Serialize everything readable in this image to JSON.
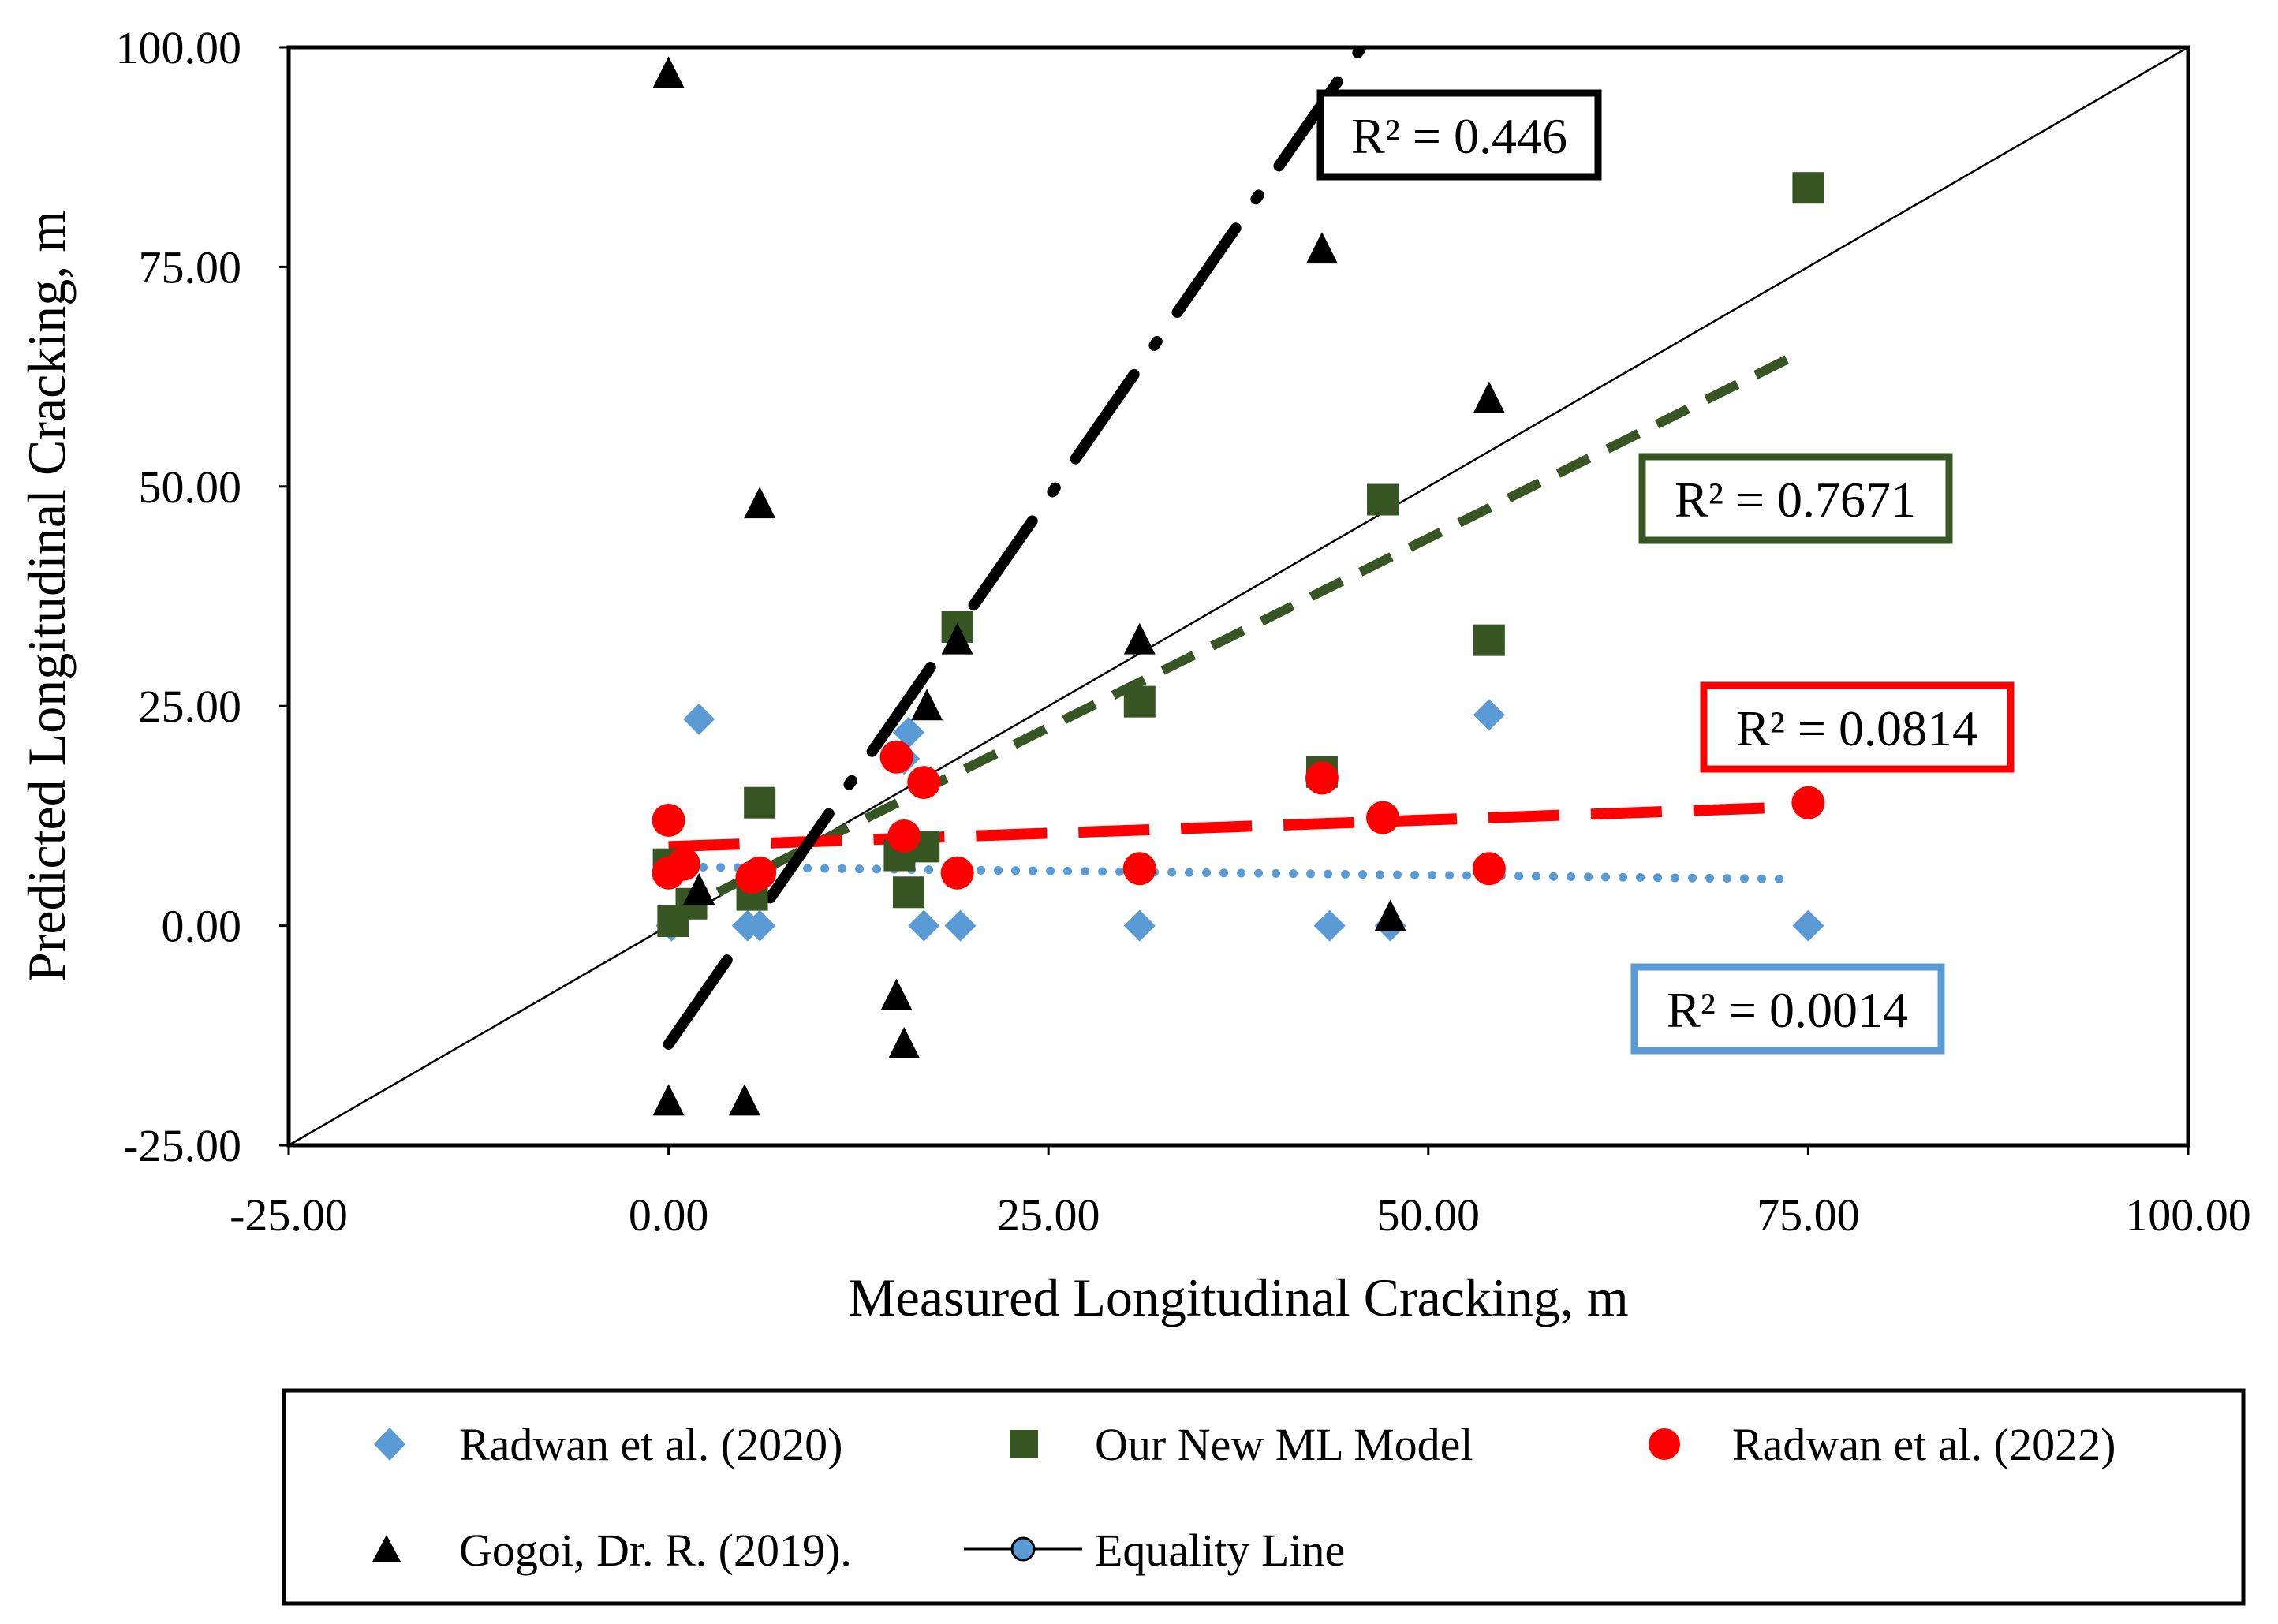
{
  "chart_data": {
    "type": "scatter",
    "title": "",
    "xlabel": "Measured Longitudinal Cracking, m",
    "ylabel": "Predicted Longitudinal Cracking, m",
    "xlim": [
      -25,
      100
    ],
    "ylim": [
      -25,
      100
    ],
    "xticks": [
      "-25.00",
      "0.00",
      "25.00",
      "50.00",
      "75.00",
      "100.00"
    ],
    "yticks": [
      "-25.00",
      "0.00",
      "25.00",
      "50.00",
      "75.00",
      "100.00"
    ],
    "grid": false,
    "legend_position": "bottom",
    "series": [
      {
        "name": "Radwan et al. (2020)",
        "marker": "diamond",
        "color": "#5B9BD5",
        "points": [
          [
            0.2,
            0
          ],
          [
            2,
            23.5
          ],
          [
            5.2,
            0
          ],
          [
            6,
            0
          ],
          [
            15.5,
            19
          ],
          [
            15.8,
            22
          ],
          [
            16.8,
            0
          ],
          [
            19.2,
            0
          ],
          [
            31,
            0
          ],
          [
            43.5,
            0
          ],
          [
            47.5,
            0
          ],
          [
            54,
            24
          ],
          [
            75,
            0
          ]
        ]
      },
      {
        "name": "Our New ML Model",
        "marker": "square",
        "color": "#375623",
        "points": [
          [
            0,
            7
          ],
          [
            0.3,
            0.5
          ],
          [
            1.5,
            2.5
          ],
          [
            5.5,
            3.5
          ],
          [
            6,
            14
          ],
          [
            15.2,
            8
          ],
          [
            15.8,
            3.8
          ],
          [
            16.8,
            9
          ],
          [
            19,
            34
          ],
          [
            31,
            25.5
          ],
          [
            43,
            17.5
          ],
          [
            47,
            48.5
          ],
          [
            54,
            32.5
          ],
          [
            75,
            84
          ]
        ]
      },
      {
        "name": "Radwan et al. (2022)",
        "marker": "circle",
        "color": "#FF0000",
        "points": [
          [
            0,
            12
          ],
          [
            0,
            6
          ],
          [
            1,
            7
          ],
          [
            5.5,
            5.5
          ],
          [
            6,
            6
          ],
          [
            15,
            19.2
          ],
          [
            15.5,
            10.2
          ],
          [
            16.8,
            16.3
          ],
          [
            19,
            6
          ],
          [
            31,
            6.5
          ],
          [
            43,
            16.8
          ],
          [
            47,
            12.3
          ],
          [
            54,
            6.5
          ],
          [
            75,
            14
          ]
        ]
      },
      {
        "name": "Gogoi, Dr. R. (2019).",
        "marker": "triangle",
        "color": "#000000",
        "points": [
          [
            0,
            97
          ],
          [
            0,
            -20
          ],
          [
            2,
            4
          ],
          [
            5,
            -20
          ],
          [
            6,
            48
          ],
          [
            15,
            -8
          ],
          [
            15.5,
            -13.5
          ],
          [
            17,
            25
          ],
          [
            19,
            32.5
          ],
          [
            31,
            32.5
          ],
          [
            43,
            77
          ],
          [
            47.5,
            1
          ],
          [
            54,
            60
          ]
        ]
      }
    ],
    "equality_line": {
      "name": "Equality Line",
      "color": "#000000",
      "marker_color": "#5B9BD5",
      "from": [
        -25,
        -25
      ],
      "to": [
        100,
        100
      ]
    },
    "trendlines": [
      {
        "series": "Radwan et al. (2020)",
        "style": "dotted",
        "color": "#5B9BD5",
        "x": [
          0,
          74
        ],
        "y": [
          6.7,
          5.3
        ],
        "r2_label": "R² = 0.0014"
      },
      {
        "series": "Our New ML Model",
        "style": "dashed",
        "color": "#375623",
        "x": [
          0,
          74
        ],
        "y": [
          1,
          64.8
        ],
        "r2_label": "R² = 0.7671"
      },
      {
        "series": "Radwan et al. (2022)",
        "style": "long-dash",
        "color": "#FF0000",
        "x": [
          0,
          74
        ],
        "y": [
          9.0,
          13.5
        ],
        "r2_label": "R² = 0.0814"
      },
      {
        "series": "Gogoi, Dr. R. (2019).",
        "style": "long-dash-dot",
        "color": "#000000",
        "x": [
          0,
          46
        ],
        "y": [
          -13.5,
          101
        ],
        "r2_label": "R² = 0.446"
      }
    ]
  }
}
